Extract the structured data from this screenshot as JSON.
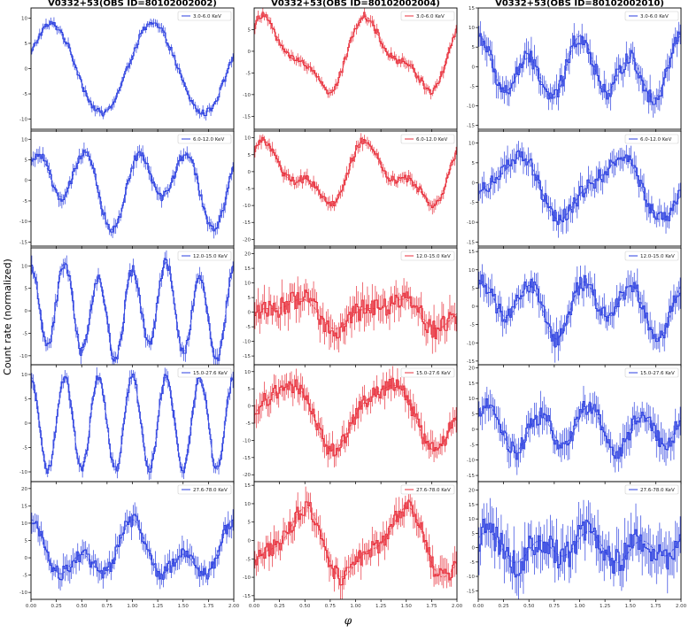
{
  "figure": {
    "ylabel": "Count rate (normalized)",
    "xlabel": "φ"
  },
  "colors": {
    "blue": "#2b3fe0",
    "red": "#e8303c"
  },
  "chart_data": [
    {
      "type": "line",
      "column": 0,
      "row": 0,
      "title": "V0332+53(OBS ID=80102002002)",
      "series": [
        {
          "name": "3.0-6.0 KeV"
        }
      ],
      "color": "blue",
      "xlim": [
        0,
        2
      ],
      "ylim": [
        -12,
        12
      ],
      "yticks": [
        -10,
        -5,
        0,
        5,
        10
      ],
      "xticks": [
        0,
        0.25,
        0.5,
        0.75,
        1.0,
        1.25,
        1.5,
        1.75,
        2.0
      ],
      "profile": {
        "h": [
          [
            1,
            8.8,
            0.2
          ]
        ],
        "offset": 0,
        "err": 0.8,
        "noise": 0.7
      }
    },
    {
      "type": "line",
      "column": 1,
      "row": 0,
      "title": "V0332+53(OBS ID=80102002004)",
      "series": [
        {
          "name": "3.0-6.0 KeV"
        }
      ],
      "color": "red",
      "xlim": [
        0,
        2
      ],
      "ylim": [
        -18,
        10
      ],
      "yticks": [
        -15,
        -10,
        -5,
        0,
        5
      ],
      "xticks": [
        0,
        0.25,
        0.5,
        0.75,
        1.0,
        1.25,
        1.5,
        1.75,
        2.0
      ],
      "profile": {
        "h": [
          [
            1,
            7,
            0.15
          ],
          [
            2,
            3,
            0.1
          ]
        ],
        "offset": -1,
        "err": 1.0,
        "noise": 0.9
      }
    },
    {
      "type": "line",
      "column": 2,
      "row": 0,
      "title": "V0332+53(OBS ID=80102002010)",
      "series": [
        {
          "name": "3.0-6.0 KeV"
        }
      ],
      "color": "blue",
      "xlim": [
        0,
        2
      ],
      "ylim": [
        -16,
        15
      ],
      "yticks": [
        -15,
        -10,
        -5,
        0,
        5,
        10,
        15
      ],
      "xticks": [
        0,
        0.25,
        0.5,
        0.75,
        1.0,
        1.25,
        1.5,
        1.75,
        2.0
      ],
      "profile": {
        "h": [
          [
            1,
            3,
            0.05
          ],
          [
            2,
            6,
            0.0
          ]
        ],
        "offset": -1,
        "err": 2.8,
        "noise": 2.2
      }
    },
    {
      "type": "line",
      "column": 0,
      "row": 1,
      "series": [
        {
          "name": "6.0-12.0 KeV"
        }
      ],
      "color": "blue",
      "xlim": [
        0,
        2
      ],
      "ylim": [
        -16,
        12
      ],
      "yticks": [
        -15,
        -10,
        -5,
        0,
        5,
        10
      ],
      "xticks": [
        0,
        0.25,
        0.5,
        0.75,
        1.0,
        1.25,
        1.5,
        1.75,
        2.0
      ],
      "profile": {
        "h": [
          [
            1,
            4,
            0.3
          ],
          [
            2,
            7,
            0.1
          ]
        ],
        "offset": -1,
        "err": 1.4,
        "noise": 1.1
      }
    },
    {
      "type": "line",
      "column": 1,
      "row": 1,
      "series": [
        {
          "name": "6.0-12.0 KeV"
        }
      ],
      "color": "red",
      "xlim": [
        0,
        2
      ],
      "ylim": [
        -22,
        12
      ],
      "yticks": [
        -20,
        -15,
        -10,
        -5,
        0,
        5,
        10
      ],
      "xticks": [
        0,
        0.25,
        0.5,
        0.75,
        1.0,
        1.25,
        1.5,
        1.75,
        2.0
      ],
      "profile": {
        "h": [
          [
            1,
            7,
            0.15
          ],
          [
            2,
            4,
            0.12
          ]
        ],
        "offset": -1,
        "err": 1.5,
        "noise": 1.2
      }
    },
    {
      "type": "line",
      "column": 2,
      "row": 1,
      "series": [
        {
          "name": "6.0-12.0 KeV"
        }
      ],
      "color": "blue",
      "xlim": [
        0,
        2
      ],
      "ylim": [
        -16,
        13
      ],
      "yticks": [
        -15,
        -10,
        -5,
        0,
        5,
        10
      ],
      "xticks": [
        0,
        0.25,
        0.5,
        0.75,
        1.0,
        1.25,
        1.5,
        1.75,
        2.0
      ],
      "profile": {
        "h": [
          [
            1,
            7,
            0.35
          ],
          [
            2,
            2,
            0.0
          ]
        ],
        "offset": -1,
        "err": 2.6,
        "noise": 2.0
      }
    },
    {
      "type": "line",
      "column": 0,
      "row": 2,
      "series": [
        {
          "name": "12.0-15.0 KeV"
        }
      ],
      "color": "blue",
      "xlim": [
        0,
        2
      ],
      "ylim": [
        -12,
        14
      ],
      "yticks": [
        -10,
        -5,
        0,
        5,
        10
      ],
      "xticks": [
        0,
        0.25,
        0.5,
        0.75,
        1.0,
        1.25,
        1.5,
        1.75,
        2.0
      ],
      "profile": {
        "h": [
          [
            3,
            9,
            0.0
          ],
          [
            1,
            2,
            0.25
          ]
        ],
        "offset": 0,
        "err": 1.6,
        "noise": 1.2
      }
    },
    {
      "type": "line",
      "column": 1,
      "row": 2,
      "series": [
        {
          "name": "12.0-15.0 KeV"
        }
      ],
      "color": "red",
      "xlim": [
        0,
        2
      ],
      "ylim": [
        -18,
        22
      ],
      "yticks": [
        -15,
        -10,
        -5,
        0,
        5,
        10,
        15,
        20
      ],
      "xticks": [
        0,
        0.25,
        0.5,
        0.75,
        1.0,
        1.25,
        1.5,
        1.75,
        2.0
      ],
      "profile": {
        "h": [
          [
            1,
            4,
            0.35
          ],
          [
            2,
            2,
            0.05
          ]
        ],
        "offset": 0,
        "err": 4.5,
        "noise": 3.5
      }
    },
    {
      "type": "line",
      "column": 2,
      "row": 2,
      "series": [
        {
          "name": "12.0-15.0 KeV"
        }
      ],
      "color": "blue",
      "xlim": [
        0,
        2
      ],
      "ylim": [
        -16,
        16
      ],
      "yticks": [
        -15,
        -10,
        -5,
        0,
        5,
        10,
        15
      ],
      "xticks": [
        0,
        0.25,
        0.5,
        0.75,
        1.0,
        1.25,
        1.5,
        1.75,
        2.0
      ],
      "profile": {
        "h": [
          [
            2,
            6,
            0.05
          ],
          [
            1,
            3,
            0.25
          ]
        ],
        "offset": 0,
        "err": 3.2,
        "noise": 2.4
      }
    },
    {
      "type": "line",
      "column": 0,
      "row": 3,
      "series": [
        {
          "name": "15.0-27.6 KeV"
        }
      ],
      "color": "blue",
      "xlim": [
        0,
        2
      ],
      "ylim": [
        -12,
        12
      ],
      "yticks": [
        -10,
        -5,
        0,
        5,
        10
      ],
      "xticks": [
        0,
        0.25,
        0.5,
        0.75,
        1.0,
        1.25,
        1.5,
        1.75,
        2.0
      ],
      "profile": {
        "h": [
          [
            3,
            9.5,
            0.0
          ]
        ],
        "offset": 0,
        "err": 1.3,
        "noise": 0.9
      }
    },
    {
      "type": "line",
      "column": 1,
      "row": 3,
      "series": [
        {
          "name": "15.0-27.6 KeV"
        }
      ],
      "color": "red",
      "xlim": [
        0,
        2
      ],
      "ylim": [
        -22,
        12
      ],
      "yticks": [
        -20,
        -15,
        -10,
        -5,
        0,
        5,
        10
      ],
      "xticks": [
        0,
        0.25,
        0.5,
        0.75,
        1.0,
        1.25,
        1.5,
        1.75,
        2.0
      ],
      "profile": {
        "h": [
          [
            1,
            9,
            0.3
          ],
          [
            2,
            2,
            0.0
          ]
        ],
        "offset": -2,
        "err": 3.0,
        "noise": 2.2
      }
    },
    {
      "type": "line",
      "column": 2,
      "row": 3,
      "series": [
        {
          "name": "15.0-27.6 KeV"
        }
      ],
      "color": "blue",
      "xlim": [
        0,
        2
      ],
      "ylim": [
        -17,
        21
      ],
      "yticks": [
        -15,
        -10,
        -5,
        0,
        5,
        10,
        15,
        20
      ],
      "xticks": [
        0,
        0.25,
        0.5,
        0.75,
        1.0,
        1.25,
        1.5,
        1.75,
        2.0
      ],
      "profile": {
        "h": [
          [
            2,
            6,
            0.2
          ],
          [
            1,
            2,
            0.0
          ]
        ],
        "offset": 0,
        "err": 4.0,
        "noise": 3.0
      }
    },
    {
      "type": "line",
      "column": 0,
      "row": 4,
      "series": [
        {
          "name": "27.6-78.0 KeV"
        }
      ],
      "color": "blue",
      "xlim": [
        0,
        2
      ],
      "ylim": [
        -12,
        22
      ],
      "yticks": [
        -10,
        -5,
        0,
        5,
        10,
        15,
        20
      ],
      "xticks": [
        0,
        0.25,
        0.5,
        0.75,
        1.0,
        1.25,
        1.5,
        1.75,
        2.0
      ],
      "profile": {
        "h": [
          [
            1,
            5,
            0.0
          ],
          [
            2,
            5,
            0.0
          ]
        ],
        "offset": 1,
        "err": 2.8,
        "noise": 2.0
      }
    },
    {
      "type": "line",
      "column": 1,
      "row": 4,
      "series": [
        {
          "name": "27.6-78.0 KeV"
        }
      ],
      "color": "red",
      "xlim": [
        0,
        2
      ],
      "ylim": [
        -16,
        16
      ],
      "yticks": [
        -15,
        -10,
        -5,
        0,
        5,
        10,
        15
      ],
      "xticks": [
        0,
        0.25,
        0.5,
        0.75,
        1.0,
        1.25,
        1.5,
        1.75,
        2.0
      ],
      "profile": {
        "h": [
          [
            1,
            8,
            0.45
          ],
          [
            2,
            3,
            0.1
          ]
        ],
        "offset": -1,
        "err": 3.0,
        "noise": 2.4
      }
    },
    {
      "type": "line",
      "column": 2,
      "row": 4,
      "series": [
        {
          "name": "27.6-78.0 KeV"
        }
      ],
      "color": "blue",
      "xlim": [
        0,
        2
      ],
      "ylim": [
        -18,
        23
      ],
      "yticks": [
        -15,
        -10,
        -5,
        0,
        5,
        10,
        15,
        20
      ],
      "xticks": [
        0,
        0.25,
        0.5,
        0.75,
        1.0,
        1.25,
        1.5,
        1.75,
        2.0
      ],
      "profile": {
        "h": [
          [
            2,
            4,
            0.2
          ],
          [
            1,
            2,
            0.0
          ]
        ],
        "offset": 0,
        "err": 6.5,
        "noise": 5.0
      }
    }
  ]
}
